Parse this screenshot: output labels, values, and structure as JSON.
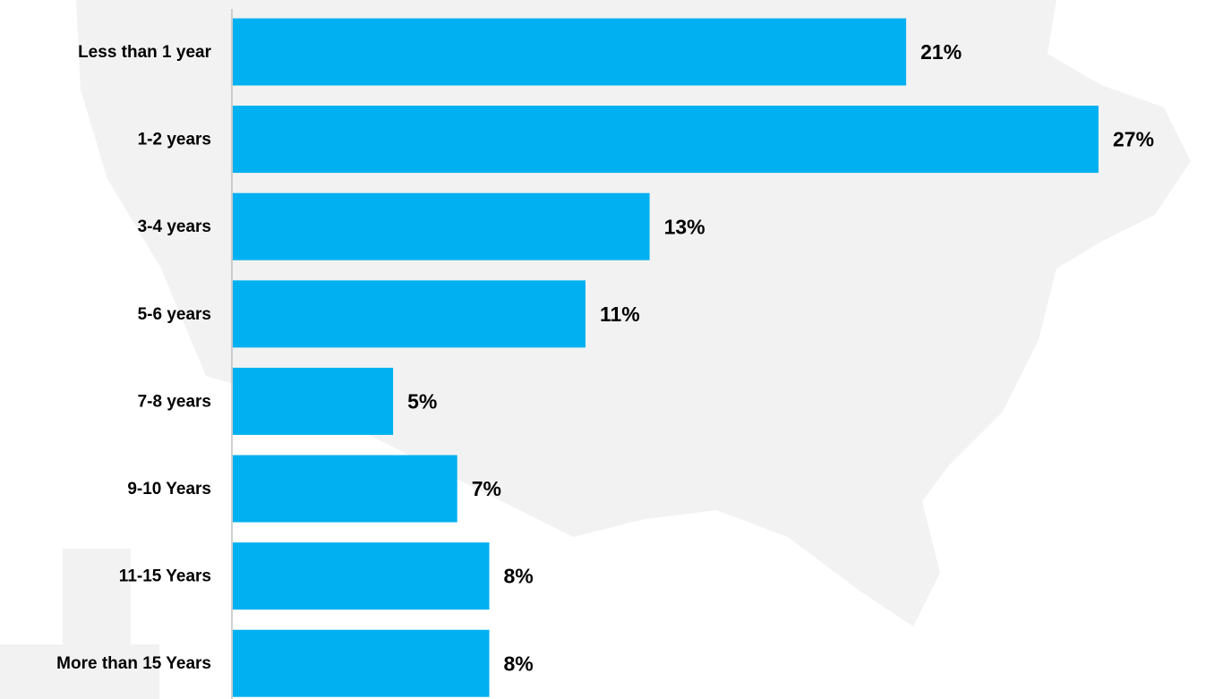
{
  "chart_data": {
    "type": "bar",
    "orientation": "horizontal",
    "categories": [
      "Less than 1 year",
      "1-2 years",
      "3-4 years",
      "5-6 years",
      "7-8 years",
      "9-10 Years",
      "11-15 Years",
      "More than 15 Years"
    ],
    "values": [
      21,
      27,
      13,
      11,
      5,
      7,
      8,
      8
    ],
    "value_labels": [
      "21%",
      "27%",
      "13%",
      "11%",
      "5%",
      "7%",
      "8%",
      "8%"
    ],
    "color": "#00b0f0"
  }
}
